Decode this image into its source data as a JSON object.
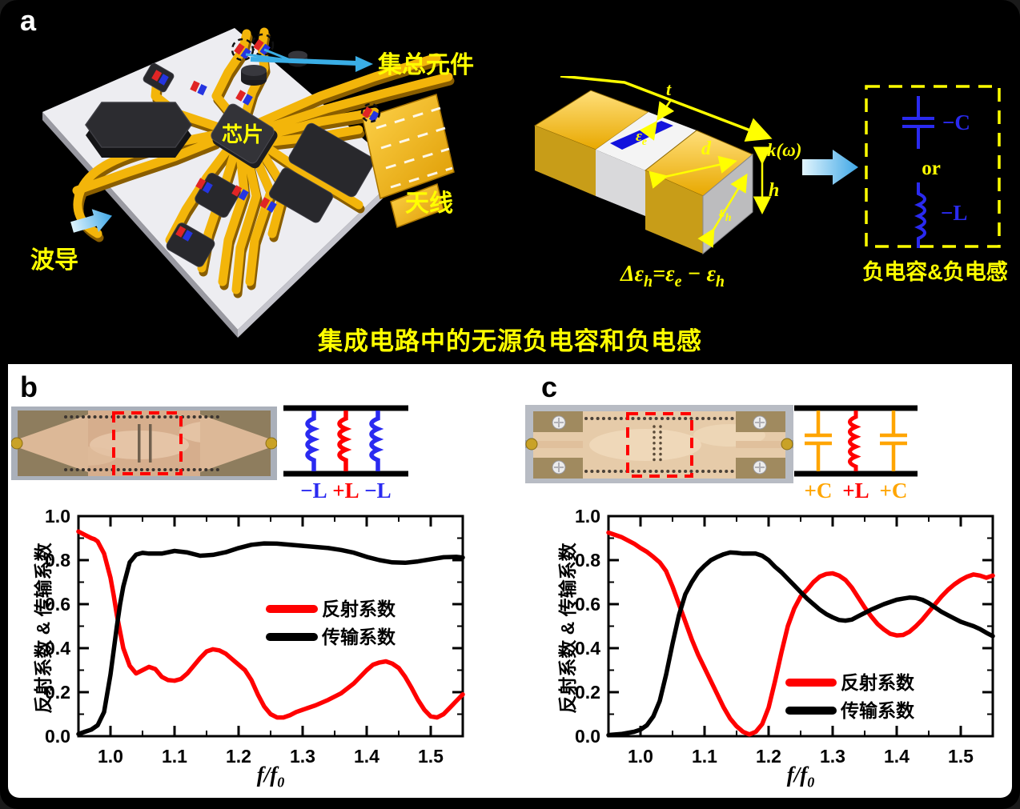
{
  "panels": {
    "a": {
      "label": "a",
      "board": {
        "lumped_label": "集总元件",
        "chip_label": "芯片",
        "antenna_label": "天线",
        "waveguide_label": "波导"
      },
      "block": {
        "t": "t",
        "d": "d",
        "h": "h",
        "k": "k(ω)",
        "eps_e": {
          "base": "ε",
          "sub": "e"
        },
        "eps_h": {
          "base": "ε",
          "sub": "h"
        },
        "formula": {
          "p1": "Δε",
          "s1": "h",
          "p2": "=",
          "p3": "ε",
          "s3": "e",
          "p4": " − ",
          "p5": "ε",
          "s5": "h"
        }
      },
      "circuit": {
        "neg_c": "−C",
        "or": "or",
        "neg_l": "−L",
        "caption": "负电容&负电感",
        "symbol_color": "#2a2af0",
        "box_color": "#ffff00"
      },
      "caption": "集成电路中的无源负电容和负电感"
    },
    "b": {
      "label": "b",
      "schematic": {
        "labels": [
          {
            "text": "−L",
            "color": "#2a2af0"
          },
          {
            "text": "+L",
            "color": "#ff0000"
          },
          {
            "text": "−L",
            "color": "#2a2af0"
          }
        ]
      }
    },
    "c": {
      "label": "c",
      "schematic": {
        "labels": [
          {
            "text": "+C",
            "color": "#ffa500"
          },
          {
            "text": "+L",
            "color": "#ff0000"
          },
          {
            "text": "+C",
            "color": "#ffa500"
          }
        ]
      }
    }
  },
  "chart_data": [
    {
      "id": "b",
      "type": "line",
      "title": "",
      "xlabel_base": "f/f",
      "xlabel_sub": "0",
      "ylabel": "反射系数 & 传输系数",
      "xlim": [
        0.95,
        1.55
      ],
      "ylim": [
        0.0,
        1.0
      ],
      "grid": false,
      "legend_position": "center right",
      "x_minor_step": 0.05,
      "y_minor_step": 0.1,
      "x_ticks": [
        {
          "v": 1.0,
          "l": "1.0"
        },
        {
          "v": 1.1,
          "l": "1.1"
        },
        {
          "v": 1.2,
          "l": "1.2"
        },
        {
          "v": 1.3,
          "l": "1.3"
        },
        {
          "v": 1.4,
          "l": "1.4"
        },
        {
          "v": 1.5,
          "l": "1.5"
        }
      ],
      "y_ticks": [
        {
          "v": 0.0,
          "l": "0.0"
        },
        {
          "v": 0.2,
          "l": "0.2"
        },
        {
          "v": 0.4,
          "l": "0.4"
        },
        {
          "v": 0.6,
          "l": "0.6"
        },
        {
          "v": 0.8,
          "l": "0.8"
        },
        {
          "v": 1.0,
          "l": "1.0"
        }
      ],
      "series": [
        {
          "name": "反射系数",
          "color": "#ff0000",
          "points": [
            [
              0.95,
              0.93
            ],
            [
              0.96,
              0.915
            ],
            [
              0.97,
              0.9
            ],
            [
              0.975,
              0.895
            ],
            [
              0.98,
              0.885
            ],
            [
              0.99,
              0.83
            ],
            [
              1.0,
              0.72
            ],
            [
              1.005,
              0.64
            ],
            [
              1.01,
              0.55
            ],
            [
              1.02,
              0.4
            ],
            [
              1.03,
              0.32
            ],
            [
              1.04,
              0.285
            ],
            [
              1.05,
              0.3
            ],
            [
              1.06,
              0.315
            ],
            [
              1.07,
              0.305
            ],
            [
              1.08,
              0.27
            ],
            [
              1.09,
              0.255
            ],
            [
              1.1,
              0.252
            ],
            [
              1.11,
              0.26
            ],
            [
              1.12,
              0.285
            ],
            [
              1.13,
              0.32
            ],
            [
              1.14,
              0.355
            ],
            [
              1.15,
              0.385
            ],
            [
              1.16,
              0.395
            ],
            [
              1.17,
              0.39
            ],
            [
              1.18,
              0.375
            ],
            [
              1.19,
              0.35
            ],
            [
              1.2,
              0.325
            ],
            [
              1.21,
              0.3
            ],
            [
              1.22,
              0.255
            ],
            [
              1.23,
              0.19
            ],
            [
              1.24,
              0.135
            ],
            [
              1.25,
              0.1
            ],
            [
              1.26,
              0.085
            ],
            [
              1.27,
              0.085
            ],
            [
              1.28,
              0.095
            ],
            [
              1.29,
              0.11
            ],
            [
              1.3,
              0.12
            ],
            [
              1.32,
              0.14
            ],
            [
              1.34,
              0.165
            ],
            [
              1.36,
              0.195
            ],
            [
              1.38,
              0.24
            ],
            [
              1.4,
              0.3
            ],
            [
              1.41,
              0.325
            ],
            [
              1.42,
              0.335
            ],
            [
              1.43,
              0.34
            ],
            [
              1.44,
              0.33
            ],
            [
              1.45,
              0.31
            ],
            [
              1.46,
              0.27
            ],
            [
              1.47,
              0.22
            ],
            [
              1.48,
              0.165
            ],
            [
              1.49,
              0.12
            ],
            [
              1.5,
              0.09
            ],
            [
              1.51,
              0.085
            ],
            [
              1.52,
              0.1
            ],
            [
              1.53,
              0.13
            ],
            [
              1.54,
              0.16
            ],
            [
              1.55,
              0.19
            ]
          ]
        },
        {
          "name": "传输系数",
          "color": "#000000",
          "points": [
            [
              0.95,
              0.01
            ],
            [
              0.96,
              0.02
            ],
            [
              0.97,
              0.03
            ],
            [
              0.98,
              0.05
            ],
            [
              0.99,
              0.11
            ],
            [
              1.0,
              0.28
            ],
            [
              1.01,
              0.5
            ],
            [
              1.015,
              0.6
            ],
            [
              1.02,
              0.68
            ],
            [
              1.03,
              0.79
            ],
            [
              1.04,
              0.825
            ],
            [
              1.05,
              0.833
            ],
            [
              1.06,
              0.83
            ],
            [
              1.08,
              0.83
            ],
            [
              1.1,
              0.842
            ],
            [
              1.12,
              0.835
            ],
            [
              1.14,
              0.82
            ],
            [
              1.16,
              0.824
            ],
            [
              1.18,
              0.836
            ],
            [
              1.2,
              0.855
            ],
            [
              1.22,
              0.87
            ],
            [
              1.24,
              0.876
            ],
            [
              1.26,
              0.875
            ],
            [
              1.28,
              0.87
            ],
            [
              1.3,
              0.865
            ],
            [
              1.32,
              0.86
            ],
            [
              1.34,
              0.855
            ],
            [
              1.36,
              0.846
            ],
            [
              1.38,
              0.834
            ],
            [
              1.4,
              0.815
            ],
            [
              1.42,
              0.8
            ],
            [
              1.44,
              0.79
            ],
            [
              1.46,
              0.788
            ],
            [
              1.48,
              0.794
            ],
            [
              1.5,
              0.804
            ],
            [
              1.52,
              0.813
            ],
            [
              1.54,
              0.815
            ],
            [
              1.55,
              0.812
            ]
          ]
        }
      ]
    },
    {
      "id": "c",
      "type": "line",
      "title": "",
      "xlabel_base": "f/f",
      "xlabel_sub": "0",
      "ylabel": "反射系数 & 传输系数",
      "xlim": [
        0.95,
        1.55
      ],
      "ylim": [
        0.0,
        1.0
      ],
      "grid": false,
      "legend_position": "lower right",
      "x_minor_step": 0.05,
      "y_minor_step": 0.1,
      "x_ticks": [
        {
          "v": 1.0,
          "l": "1.0"
        },
        {
          "v": 1.1,
          "l": "1.1"
        },
        {
          "v": 1.2,
          "l": "1.2"
        },
        {
          "v": 1.3,
          "l": "1.3"
        },
        {
          "v": 1.4,
          "l": "1.4"
        },
        {
          "v": 1.5,
          "l": "1.5"
        }
      ],
      "y_ticks": [
        {
          "v": 0.0,
          "l": "0.0"
        },
        {
          "v": 0.2,
          "l": "0.2"
        },
        {
          "v": 0.4,
          "l": "0.4"
        },
        {
          "v": 0.6,
          "l": "0.6"
        },
        {
          "v": 0.8,
          "l": "0.8"
        },
        {
          "v": 1.0,
          "l": "1.0"
        }
      ],
      "series": [
        {
          "name": "反射系数",
          "color": "#ff0000",
          "points": [
            [
              0.95,
              0.925
            ],
            [
              0.97,
              0.905
            ],
            [
              0.99,
              0.875
            ],
            [
              1.0,
              0.855
            ],
            [
              1.01,
              0.838
            ],
            [
              1.02,
              0.815
            ],
            [
              1.03,
              0.79
            ],
            [
              1.04,
              0.75
            ],
            [
              1.05,
              0.68
            ],
            [
              1.06,
              0.6
            ],
            [
              1.07,
              0.52
            ],
            [
              1.08,
              0.44
            ],
            [
              1.09,
              0.37
            ],
            [
              1.1,
              0.31
            ],
            [
              1.11,
              0.25
            ],
            [
              1.12,
              0.19
            ],
            [
              1.13,
              0.13
            ],
            [
              1.14,
              0.08
            ],
            [
              1.15,
              0.045
            ],
            [
              1.16,
              0.02
            ],
            [
              1.17,
              0.008
            ],
            [
              1.18,
              0.02
            ],
            [
              1.19,
              0.055
            ],
            [
              1.2,
              0.13
            ],
            [
              1.21,
              0.25
            ],
            [
              1.22,
              0.38
            ],
            [
              1.23,
              0.5
            ],
            [
              1.24,
              0.58
            ],
            [
              1.25,
              0.635
            ],
            [
              1.26,
              0.665
            ],
            [
              1.27,
              0.7
            ],
            [
              1.28,
              0.725
            ],
            [
              1.29,
              0.737
            ],
            [
              1.3,
              0.74
            ],
            [
              1.31,
              0.73
            ],
            [
              1.32,
              0.71
            ],
            [
              1.33,
              0.675
            ],
            [
              1.34,
              0.63
            ],
            [
              1.35,
              0.585
            ],
            [
              1.36,
              0.545
            ],
            [
              1.37,
              0.51
            ],
            [
              1.38,
              0.485
            ],
            [
              1.39,
              0.465
            ],
            [
              1.4,
              0.458
            ],
            [
              1.41,
              0.46
            ],
            [
              1.42,
              0.475
            ],
            [
              1.43,
              0.5
            ],
            [
              1.44,
              0.53
            ],
            [
              1.45,
              0.565
            ],
            [
              1.46,
              0.6
            ],
            [
              1.47,
              0.635
            ],
            [
              1.48,
              0.665
            ],
            [
              1.49,
              0.69
            ],
            [
              1.5,
              0.71
            ],
            [
              1.51,
              0.725
            ],
            [
              1.52,
              0.735
            ],
            [
              1.53,
              0.73
            ],
            [
              1.54,
              0.72
            ],
            [
              1.55,
              0.73
            ]
          ]
        },
        {
          "name": "传输系数",
          "color": "#000000",
          "points": [
            [
              0.95,
              0.005
            ],
            [
              0.97,
              0.01
            ],
            [
              0.99,
              0.02
            ],
            [
              1.0,
              0.03
            ],
            [
              1.01,
              0.05
            ],
            [
              1.02,
              0.09
            ],
            [
              1.03,
              0.16
            ],
            [
              1.04,
              0.28
            ],
            [
              1.05,
              0.42
            ],
            [
              1.06,
              0.55
            ],
            [
              1.07,
              0.645
            ],
            [
              1.08,
              0.7
            ],
            [
              1.09,
              0.745
            ],
            [
              1.1,
              0.775
            ],
            [
              1.11,
              0.8
            ],
            [
              1.12,
              0.815
            ],
            [
              1.13,
              0.827
            ],
            [
              1.14,
              0.835
            ],
            [
              1.15,
              0.833
            ],
            [
              1.16,
              0.83
            ],
            [
              1.18,
              0.83
            ],
            [
              1.19,
              0.82
            ],
            [
              1.2,
              0.8
            ],
            [
              1.21,
              0.77
            ],
            [
              1.22,
              0.745
            ],
            [
              1.23,
              0.715
            ],
            [
              1.24,
              0.685
            ],
            [
              1.25,
              0.655
            ],
            [
              1.26,
              0.625
            ],
            [
              1.27,
              0.6
            ],
            [
              1.28,
              0.575
            ],
            [
              1.29,
              0.555
            ],
            [
              1.3,
              0.54
            ],
            [
              1.31,
              0.528
            ],
            [
              1.32,
              0.525
            ],
            [
              1.33,
              0.53
            ],
            [
              1.34,
              0.545
            ],
            [
              1.35,
              0.56
            ],
            [
              1.36,
              0.575
            ],
            [
              1.38,
              0.6
            ],
            [
              1.4,
              0.62
            ],
            [
              1.41,
              0.625
            ],
            [
              1.42,
              0.63
            ],
            [
              1.43,
              0.628
            ],
            [
              1.44,
              0.62
            ],
            [
              1.45,
              0.605
            ],
            [
              1.46,
              0.585
            ],
            [
              1.47,
              0.565
            ],
            [
              1.48,
              0.55
            ],
            [
              1.49,
              0.535
            ],
            [
              1.5,
              0.52
            ],
            [
              1.51,
              0.51
            ],
            [
              1.52,
              0.5
            ],
            [
              1.53,
              0.487
            ],
            [
              1.54,
              0.47
            ],
            [
              1.55,
              0.455
            ]
          ]
        }
      ]
    }
  ]
}
